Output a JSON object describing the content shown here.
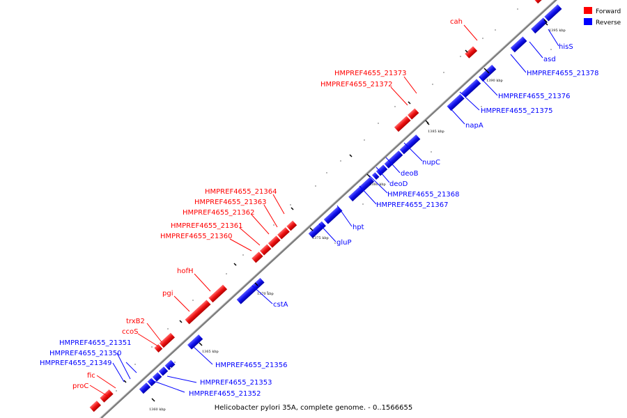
{
  "caption": "Helicobacter pylori 35A, complete genome. - 0..1566655",
  "colors": {
    "forward": "#ff0000",
    "reverse": "#0000ff",
    "backbone": "#888888"
  },
  "legend": [
    {
      "name": "Forward",
      "color": "#ff0000"
    },
    {
      "name": "Reverse",
      "color": "#0000ff"
    }
  ],
  "ticks": [
    "1360 kbp",
    "1365 kbp",
    "1370 kbp",
    "1375 kbp",
    "1380 kbp",
    "1385 kbp",
    "1390 kbp",
    "1395 kbp"
  ],
  "forward_labels": [
    "proC",
    "fic",
    "ccoS",
    "trxB2",
    "pgi",
    "hofH",
    "HMPREF4655_21360",
    "HMPREF4655_21361",
    "HMPREF4655_21362",
    "HMPREF4655_21363",
    "HMPREF4655_21364",
    "HMPREF4655_21372",
    "HMPREF4655_21373",
    "cah"
  ],
  "reverse_labels": [
    "HMPREF4655_21349",
    "HMPREF4655_21350",
    "HMPREF4655_21351",
    "HMPREF4655_21352",
    "HMPREF4655_21353",
    "HMPREF4655_21356",
    "cstA",
    "gluP",
    "hpt",
    "HMPREF4655_21367",
    "HMPREF4655_21368",
    "deoD",
    "deoB",
    "nupC",
    "napA",
    "HMPREF4655_21375",
    "HMPREF4655_21376",
    "HMPREF4655_21378",
    "asd",
    "hisS"
  ]
}
